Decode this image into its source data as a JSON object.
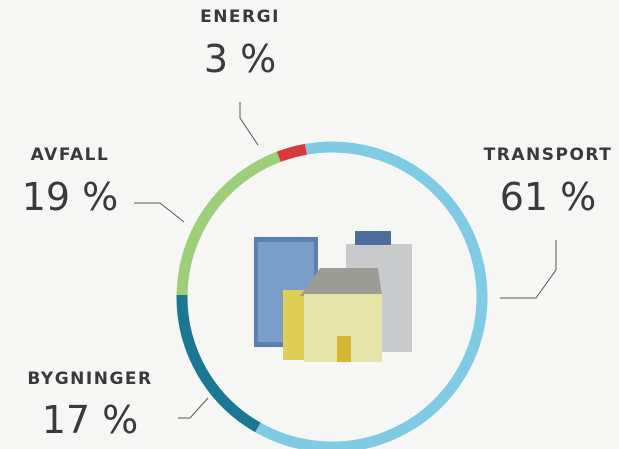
{
  "chart_data": {
    "type": "donut",
    "categories": [
      "TRANSPORT",
      "BYGNINGER",
      "AVFALL",
      "ENERGI"
    ],
    "values": [
      61,
      17,
      19,
      3
    ],
    "value_labels": [
      "61 %",
      "17 %",
      "19 %",
      "3 %"
    ],
    "colors": [
      "#7ecbe3",
      "#1b7893",
      "#9dcf7b",
      "#d8393a"
    ]
  }
}
